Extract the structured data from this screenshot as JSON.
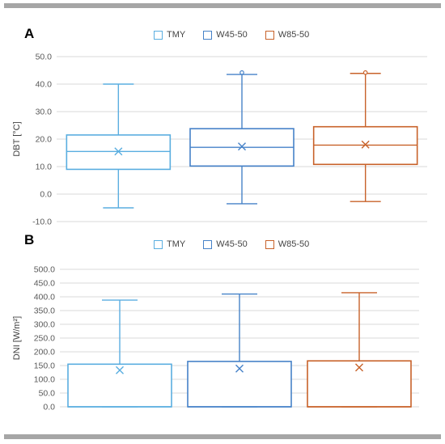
{
  "colors": {
    "TMY": "#5aaee0",
    "W45-50": "#4682c8",
    "W85-50": "#c8622a"
  },
  "chart_data": [
    {
      "type": "box",
      "panel_label": "A",
      "ylabel": "DBT [°C]",
      "ylim": [
        -10,
        50
      ],
      "yticks": [
        "-10.0",
        "0.0",
        "10.0",
        "20.0",
        "30.0",
        "40.0",
        "50.0"
      ],
      "ytick_values": [
        -10,
        0,
        10,
        20,
        30,
        40,
        50
      ],
      "grid": true,
      "legend_position": "top",
      "series": [
        {
          "name": "TMY",
          "min": -5.0,
          "q1": 9.0,
          "median": 15.5,
          "mean": 15.5,
          "q3": 21.5,
          "max": 40.0,
          "outliers": []
        },
        {
          "name": "W45-50",
          "min": -3.5,
          "q1": 10.2,
          "median": 17.0,
          "mean": 17.3,
          "q3": 23.8,
          "max": 43.5,
          "outliers": [
            44.2
          ]
        },
        {
          "name": "W85-50",
          "min": -2.7,
          "q1": 10.8,
          "median": 17.8,
          "mean": 18.0,
          "q3": 24.5,
          "max": 43.9,
          "outliers": [
            44.2
          ]
        }
      ]
    },
    {
      "type": "box",
      "panel_label": "B",
      "ylabel": "DNI [W/m²]",
      "ylim": [
        0,
        500
      ],
      "yticks": [
        "0.0",
        "50.0",
        "100.0",
        "150.0",
        "200.0",
        "250.0",
        "300.0",
        "350.0",
        "400.0",
        "450.0",
        "500.0"
      ],
      "ytick_values": [
        0,
        50,
        100,
        150,
        200,
        250,
        300,
        350,
        400,
        450,
        500
      ],
      "grid": true,
      "legend_position": "top",
      "series": [
        {
          "name": "TMY",
          "min": 0.0,
          "q1": 0.0,
          "median": 0.0,
          "mean": 133.0,
          "q3": 155.0,
          "max": 388.0,
          "outliers": []
        },
        {
          "name": "W45-50",
          "min": 0.0,
          "q1": 0.0,
          "median": 0.0,
          "mean": 139.0,
          "q3": 165.0,
          "max": 410.0,
          "outliers": []
        },
        {
          "name": "W85-50",
          "min": 0.0,
          "q1": 0.0,
          "median": 0.0,
          "mean": 143.0,
          "q3": 167.0,
          "max": 415.0,
          "outliers": []
        }
      ]
    }
  ]
}
